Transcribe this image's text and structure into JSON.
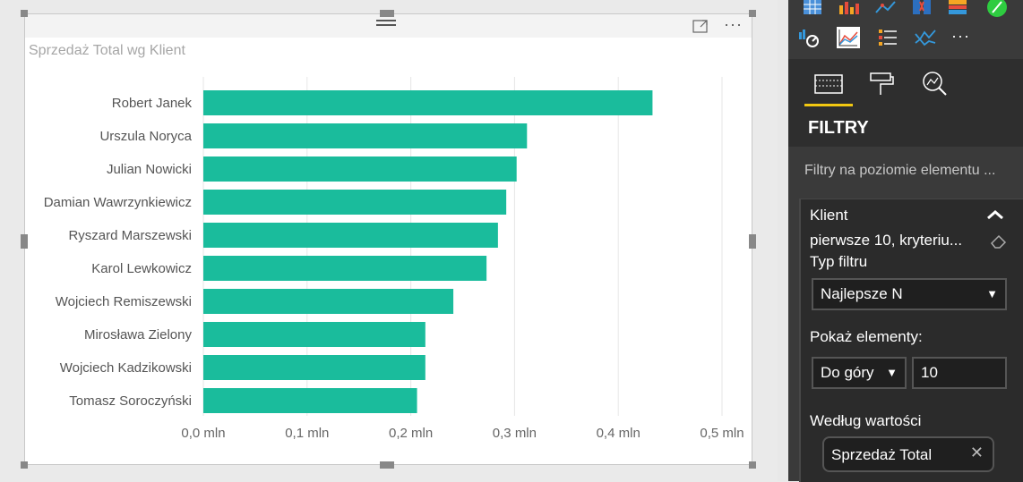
{
  "visual": {
    "title": "Sprzedaż Total wg Klient",
    "menu_glyph": "···"
  },
  "chart_data": {
    "type": "bar",
    "orientation": "horizontal",
    "title": "Sprzedaż Total wg Klient",
    "categories": [
      "Robert Janek",
      "Urszula Noryca",
      "Julian Nowicki",
      "Damian Wawrzynkiewicz",
      "Ryszard Marszewski",
      "Karol Lewkowicz",
      "Wojciech Remiszewski",
      "Mirosława Zielony",
      "Wojciech Kadzikowski",
      "Tomasz Soroczyński"
    ],
    "values": [
      0.433,
      0.312,
      0.302,
      0.292,
      0.284,
      0.273,
      0.241,
      0.214,
      0.214,
      0.206
    ],
    "xlim": [
      0,
      0.5
    ],
    "xticks": [
      0,
      0.1,
      0.2,
      0.3,
      0.4,
      0.5
    ],
    "xtick_labels": [
      "0,0 mln",
      "0,1 mln",
      "0,2 mln",
      "0,3 mln",
      "0,4 mln",
      "0,5 mln"
    ],
    "grid": true,
    "bar_color": "#1abc9c"
  },
  "pane": {
    "more_glyph": "···",
    "filters_title": "FILTRY",
    "section_title": "Filtry na poziomie elementu ...",
    "field_name": "Klient",
    "summary": "pierwsze 10, kryteriu...",
    "filter_type_label": "Typ filtru",
    "filter_type_value": "Najlepsze N",
    "show_items_label": "Pokaż elementy:",
    "direction_value": "Do góry",
    "count_value": "10",
    "by_value_label": "Według wartości",
    "value_field": "Sprzedaż Total",
    "colors": {
      "accent": "#f2c811",
      "pane_bg": "#3a3a3a"
    }
  }
}
